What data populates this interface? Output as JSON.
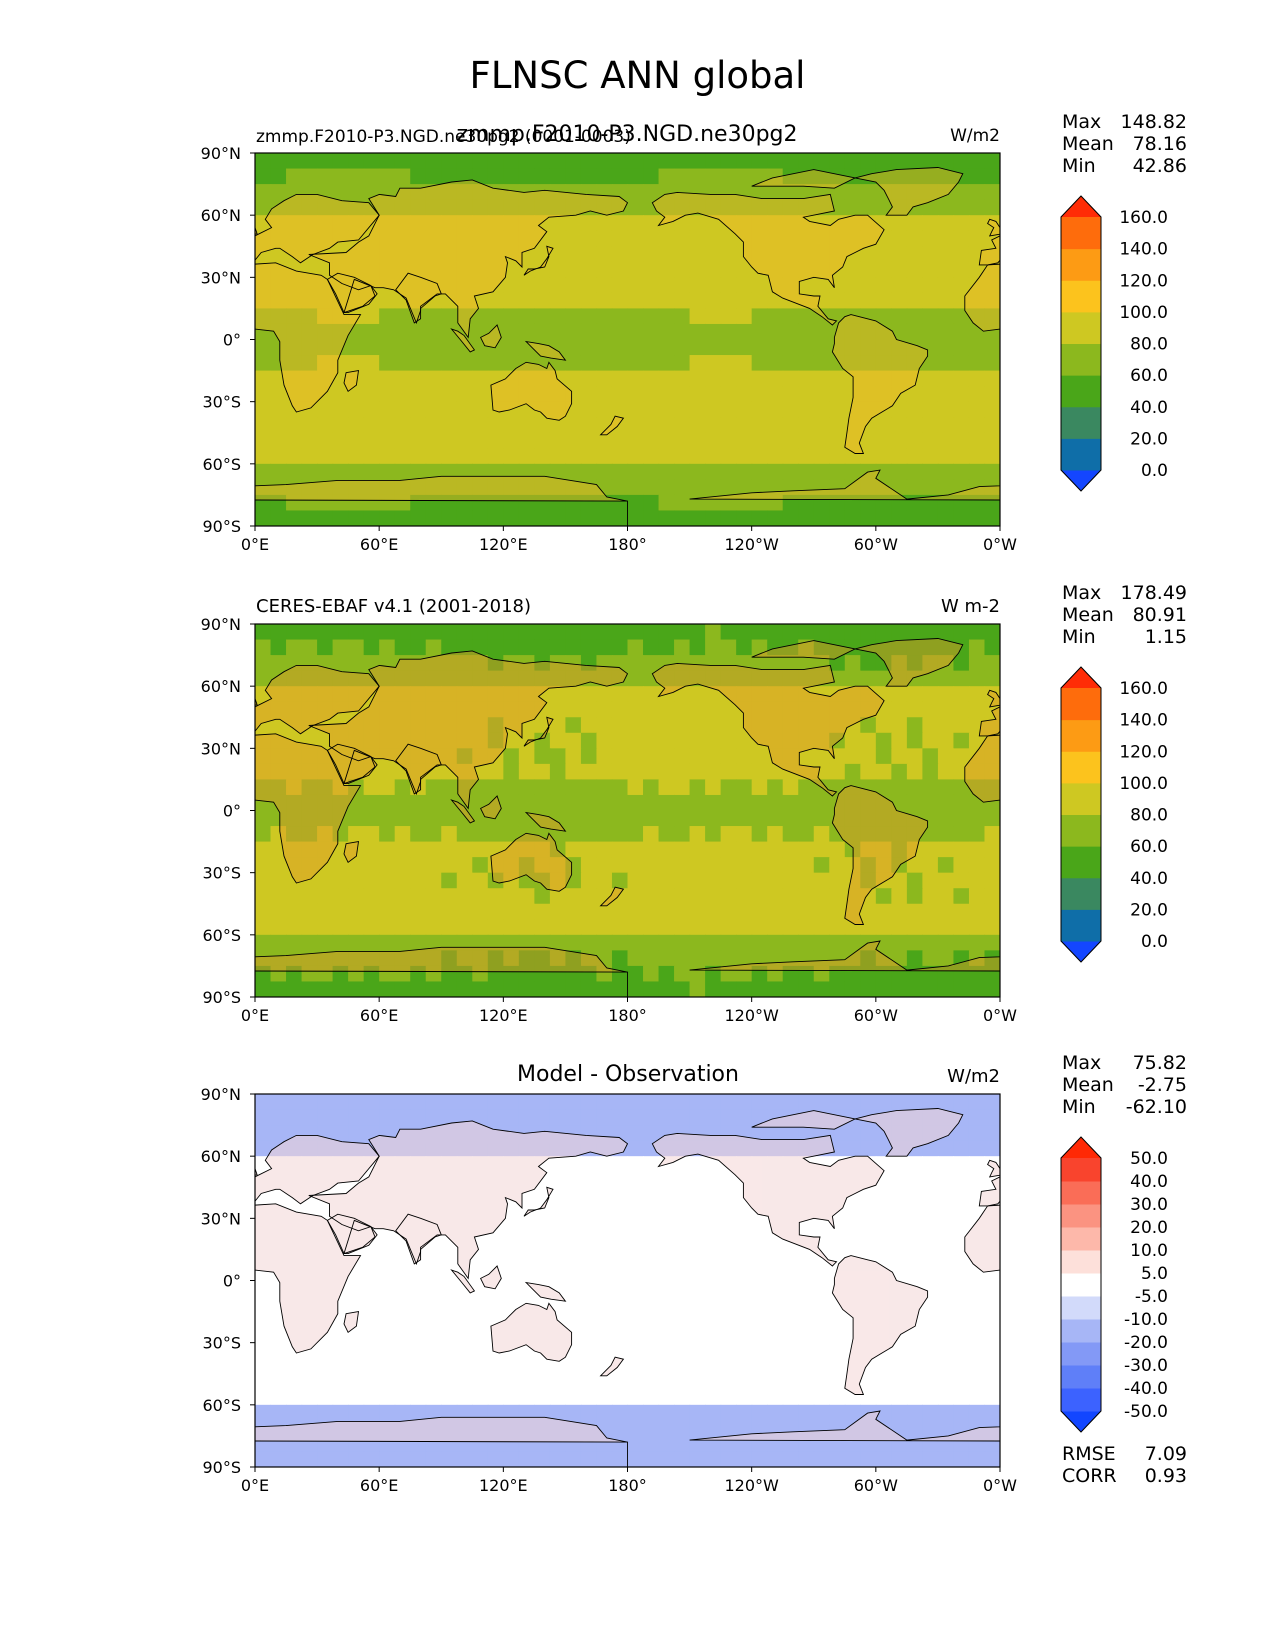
{
  "figure": {
    "title": "FLNSC ANN global"
  },
  "colors": {
    "test_levels": [
      "#1446ff",
      "#0f6ea8",
      "#3a8860",
      "#4aa619",
      "#8cb81e",
      "#cec822",
      "#fcc31d",
      "#fd9b14",
      "#fe6c0c",
      "#ff2c06"
    ],
    "diff_levels": [
      "#1246ff",
      "#3c62ff",
      "#5f7ff8",
      "#8399f6",
      "#a7b6f6",
      "#d2dafa",
      "#ffffff",
      "#fde0da",
      "#fdb8aa",
      "#fb9381",
      "#fa6d57",
      "#f9442d",
      "#ff2905"
    ],
    "land_outline": "#000000"
  },
  "chart_data": [
    {
      "type": "heatmap",
      "panel": "test",
      "title_left": "zmmp.F2010-P3.NGD.ne30pg2 (0001-0003)",
      "title_center": "zmmp.F2010-P3.NGD.ne30pg2",
      "units": "W/m2",
      "variable": "FLNSC",
      "season": "ANN",
      "x_ticks": [
        "0°E",
        "60°E",
        "120°E",
        "180°",
        "120°W",
        "60°W",
        "0°W"
      ],
      "y_ticks": [
        "90°N",
        "60°N",
        "30°N",
        "0°",
        "30°S",
        "60°S",
        "90°S"
      ],
      "xlim": [
        0,
        360
      ],
      "ylim": [
        -90,
        90
      ],
      "stats": [
        {
          "label": "Max",
          "value": "148.82"
        },
        {
          "label": "Mean",
          "value": "78.16"
        },
        {
          "label": "Min",
          "value": "42.86"
        }
      ],
      "colorbar": {
        "levels": [
          "0.0",
          "20.0",
          "40.0",
          "60.0",
          "80.0",
          "100.0",
          "120.0",
          "140.0",
          "160.0"
        ],
        "extend": "both"
      }
    },
    {
      "type": "heatmap",
      "panel": "reference",
      "title_left": "CERES-EBAF v4.1 (2001-2018)",
      "units": "W m-2",
      "x_ticks": [
        "0°E",
        "60°E",
        "120°E",
        "180°",
        "120°W",
        "60°W",
        "0°W"
      ],
      "y_ticks": [
        "90°N",
        "60°N",
        "30°N",
        "0°",
        "30°S",
        "60°S",
        "90°S"
      ],
      "xlim": [
        0,
        360
      ],
      "ylim": [
        -90,
        90
      ],
      "stats": [
        {
          "label": "Max",
          "value": "178.49"
        },
        {
          "label": "Mean",
          "value": "80.91"
        },
        {
          "label": "Min",
          "value": "1.15"
        }
      ],
      "colorbar": {
        "levels": [
          "0.0",
          "20.0",
          "40.0",
          "60.0",
          "80.0",
          "100.0",
          "120.0",
          "140.0",
          "160.0"
        ],
        "extend": "both"
      }
    },
    {
      "type": "heatmap",
      "panel": "difference",
      "title_center": "Model - Observation",
      "units": "W/m2",
      "x_ticks": [
        "0°E",
        "60°E",
        "120°E",
        "180°",
        "120°W",
        "60°W",
        "0°W"
      ],
      "y_ticks": [
        "90°N",
        "60°N",
        "30°N",
        "0°",
        "30°S",
        "60°S",
        "90°S"
      ],
      "xlim": [
        0,
        360
      ],
      "ylim": [
        -90,
        90
      ],
      "stats": [
        {
          "label": "Max",
          "value": "75.82"
        },
        {
          "label": "Mean",
          "value": "-2.75"
        },
        {
          "label": "Min",
          "value": "-62.10"
        }
      ],
      "extra_stats": [
        {
          "label": "RMSE",
          "value": "7.09"
        },
        {
          "label": "CORR",
          "value": "0.93"
        }
      ],
      "colorbar": {
        "levels": [
          "-50.0",
          "-40.0",
          "-30.0",
          "-20.0",
          "-10.0",
          "-5.0",
          "5.0",
          "10.0",
          "20.0",
          "30.0",
          "40.0",
          "50.0"
        ],
        "extend": "both"
      }
    }
  ]
}
